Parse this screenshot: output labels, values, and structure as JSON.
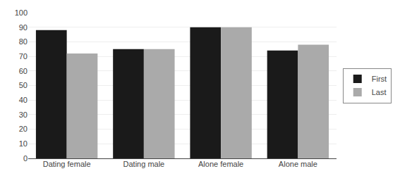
{
  "chart_data": {
    "type": "bar",
    "categories": [
      "Dating female",
      "Dating male",
      "Alone female",
      "Alone male"
    ],
    "series": [
      {
        "name": "First",
        "color": "#1a1a1a",
        "values": [
          88,
          75,
          90,
          74
        ]
      },
      {
        "name": "Last",
        "color": "#aaaaaa",
        "values": [
          72,
          75,
          90,
          78
        ]
      }
    ],
    "ylim": [
      0,
      100
    ],
    "yticks": [
      0,
      10,
      20,
      30,
      40,
      50,
      60,
      70,
      80,
      90,
      100
    ],
    "grid": true,
    "legend": "right"
  }
}
